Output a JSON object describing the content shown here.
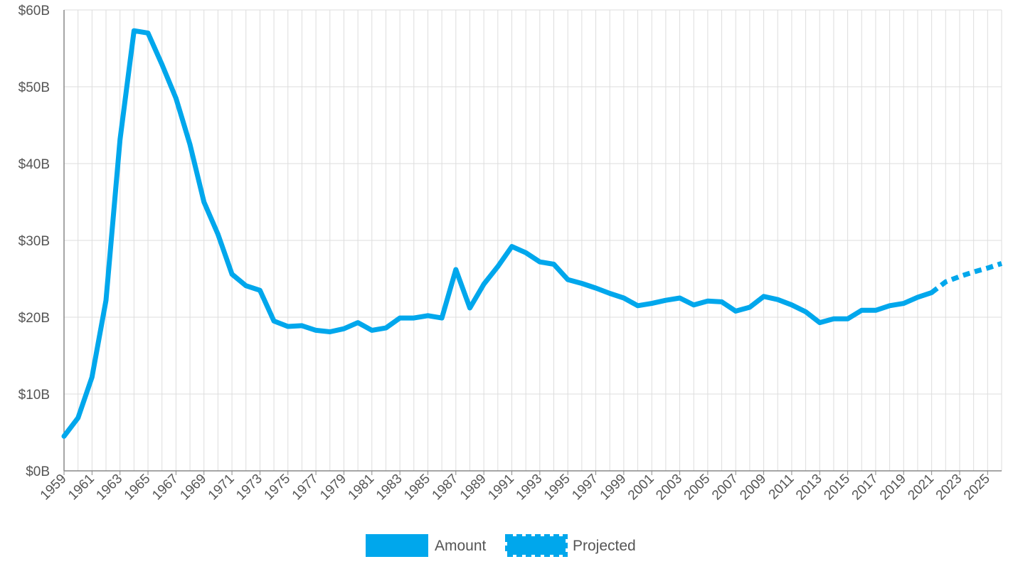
{
  "chart_data": {
    "type": "line",
    "title": "",
    "xlabel": "",
    "ylabel": "",
    "xlim": [
      1959,
      2026
    ],
    "ylim": [
      0,
      60
    ],
    "x_tick_step": 2,
    "y_ticks": [
      0,
      10,
      20,
      30,
      40,
      50,
      60
    ],
    "y_tick_labels": [
      "$0B",
      "$10B",
      "$20B",
      "$30B",
      "$40B",
      "$50B",
      "$60B"
    ],
    "grid": true,
    "legend_position": "bottom-center",
    "color": "#00a7ec",
    "series": [
      {
        "name": "Amount",
        "style": "solid",
        "x": [
          1959,
          1960,
          1961,
          1962,
          1963,
          1964,
          1965,
          1966,
          1967,
          1968,
          1969,
          1970,
          1971,
          1972,
          1973,
          1974,
          1975,
          1976,
          1977,
          1978,
          1979,
          1980,
          1981,
          1982,
          1983,
          1984,
          1985,
          1986,
          1987,
          1988,
          1989,
          1990,
          1991,
          1992,
          1993,
          1994,
          1995,
          1996,
          1997,
          1998,
          1999,
          2000,
          2001,
          2002,
          2003,
          2004,
          2005,
          2006,
          2007,
          2008,
          2009,
          2010,
          2011,
          2012,
          2013,
          2014,
          2015,
          2016,
          2017,
          2018,
          2019,
          2020,
          2021
        ],
        "y": [
          4.5,
          6.9,
          12.2,
          22.2,
          43.1,
          57.3,
          57.0,
          52.9,
          48.5,
          42.5,
          35.0,
          30.8,
          25.6,
          24.1,
          23.5,
          19.5,
          18.8,
          18.9,
          18.3,
          18.1,
          18.5,
          19.3,
          18.3,
          18.6,
          19.9,
          19.9,
          20.2,
          19.9,
          26.2,
          21.2,
          24.3,
          26.6,
          29.2,
          28.4,
          27.2,
          26.9,
          24.9,
          24.4,
          23.8,
          23.1,
          22.5,
          21.5,
          21.8,
          22.2,
          22.5,
          21.6,
          22.1,
          22.0,
          20.8,
          21.3,
          22.7,
          22.3,
          21.6,
          20.7,
          19.3,
          19.8,
          19.8,
          20.9,
          20.9,
          21.5,
          21.8,
          22.6,
          23.2
        ]
      },
      {
        "name": "Projected",
        "style": "dotted",
        "x": [
          2021,
          2022,
          2023,
          2024,
          2025,
          2026
        ],
        "y": [
          23.2,
          24.6,
          25.3,
          25.9,
          26.4,
          27.0
        ]
      }
    ]
  }
}
